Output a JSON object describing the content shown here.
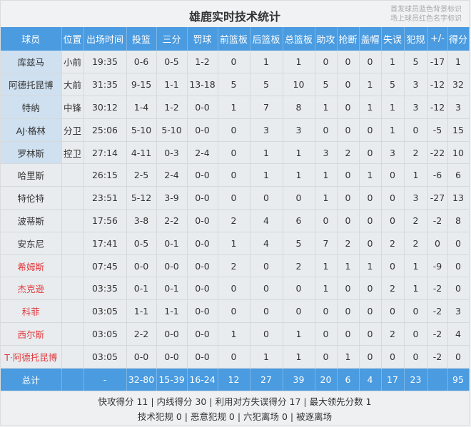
{
  "title": "雄鹿实时技术统计",
  "legend": [
    "首发球员蓝色背景标识",
    "场上球员红色名字标识"
  ],
  "colors": {
    "header": "#4a9be0",
    "starter_bg": "#cfe0f0",
    "on_court_name": "#e0383e"
  },
  "columns": [
    "球员",
    "位置",
    "出场时间",
    "投篮",
    "三分",
    "罚球",
    "前篮板",
    "后篮板",
    "总篮板",
    "助攻",
    "抢断",
    "盖帽",
    "失误",
    "犯规",
    "+/-",
    "得分"
  ],
  "players": [
    {
      "name": "库兹马",
      "starter": true,
      "on_court": false,
      "stats": [
        "小前",
        "19:35",
        "0-6",
        "0-5",
        "1-2",
        "0",
        "1",
        "1",
        "0",
        "0",
        "0",
        "1",
        "5",
        "-17",
        "1"
      ]
    },
    {
      "name": "阿德托昆博",
      "starter": true,
      "on_court": false,
      "stats": [
        "大前",
        "31:35",
        "9-15",
        "1-1",
        "13-18",
        "5",
        "5",
        "10",
        "5",
        "0",
        "1",
        "5",
        "3",
        "-12",
        "32"
      ]
    },
    {
      "name": "特纳",
      "starter": true,
      "on_court": false,
      "stats": [
        "中锋",
        "30:12",
        "1-4",
        "1-2",
        "0-0",
        "1",
        "7",
        "8",
        "1",
        "0",
        "1",
        "1",
        "3",
        "-12",
        "3"
      ]
    },
    {
      "name": "AJ·格林",
      "starter": true,
      "on_court": false,
      "stats": [
        "分卫",
        "25:06",
        "5-10",
        "5-10",
        "0-0",
        "0",
        "3",
        "3",
        "0",
        "0",
        "0",
        "1",
        "0",
        "-5",
        "15"
      ]
    },
    {
      "name": "罗林斯",
      "starter": true,
      "on_court": false,
      "stats": [
        "控卫",
        "27:14",
        "4-11",
        "0-3",
        "2-4",
        "0",
        "1",
        "1",
        "3",
        "2",
        "0",
        "3",
        "2",
        "-22",
        "10"
      ]
    },
    {
      "name": "哈里斯",
      "starter": false,
      "on_court": false,
      "stats": [
        "",
        "26:15",
        "2-5",
        "2-4",
        "0-0",
        "0",
        "1",
        "1",
        "1",
        "0",
        "1",
        "0",
        "1",
        "-6",
        "6"
      ]
    },
    {
      "name": "特伦特",
      "starter": false,
      "on_court": false,
      "stats": [
        "",
        "23:51",
        "5-12",
        "3-9",
        "0-0",
        "0",
        "0",
        "0",
        "1",
        "0",
        "0",
        "0",
        "3",
        "-27",
        "13"
      ]
    },
    {
      "name": "波蒂斯",
      "starter": false,
      "on_court": false,
      "stats": [
        "",
        "17:56",
        "3-8",
        "2-2",
        "0-0",
        "2",
        "4",
        "6",
        "0",
        "0",
        "0",
        "0",
        "2",
        "-2",
        "8"
      ]
    },
    {
      "name": "安东尼",
      "starter": false,
      "on_court": false,
      "stats": [
        "",
        "17:41",
        "0-5",
        "0-1",
        "0-0",
        "1",
        "4",
        "5",
        "7",
        "2",
        "0",
        "2",
        "2",
        "0",
        "0"
      ]
    },
    {
      "name": "希姆斯",
      "starter": false,
      "on_court": true,
      "stats": [
        "",
        "07:45",
        "0-0",
        "0-0",
        "0-0",
        "2",
        "0",
        "2",
        "1",
        "1",
        "1",
        "0",
        "1",
        "-9",
        "0"
      ]
    },
    {
      "name": "杰克逊",
      "starter": false,
      "on_court": true,
      "stats": [
        "",
        "03:35",
        "0-1",
        "0-1",
        "0-0",
        "0",
        "0",
        "0",
        "1",
        "0",
        "0",
        "2",
        "1",
        "-2",
        "0"
      ]
    },
    {
      "name": "科菲",
      "starter": false,
      "on_court": true,
      "stats": [
        "",
        "03:05",
        "1-1",
        "1-1",
        "0-0",
        "0",
        "0",
        "0",
        "0",
        "0",
        "0",
        "0",
        "0",
        "-2",
        "3"
      ]
    },
    {
      "name": "西尔斯",
      "starter": false,
      "on_court": true,
      "stats": [
        "",
        "03:05",
        "2-2",
        "0-0",
        "0-0",
        "1",
        "0",
        "1",
        "0",
        "0",
        "0",
        "2",
        "0",
        "-2",
        "4"
      ]
    },
    {
      "name": "T·阿德托昆博",
      "starter": false,
      "on_court": true,
      "stats": [
        "",
        "03:05",
        "0-0",
        "0-0",
        "0-0",
        "0",
        "1",
        "1",
        "0",
        "1",
        "0",
        "0",
        "0",
        "-2",
        "0"
      ]
    }
  ],
  "total": {
    "label": "总计",
    "stats": [
      "",
      "-",
      "32-80",
      "15-39",
      "16-24",
      "12",
      "27",
      "39",
      "20",
      "6",
      "4",
      "17",
      "23",
      "",
      "95"
    ]
  },
  "footer": [
    "快攻得分 11 | 内线得分 30 | 利用对方失误得分 17 | 最大领先分数 1",
    "技术犯规 0 | 恶意犯规 0 | 六犯离场 0 | 被逐离场"
  ]
}
